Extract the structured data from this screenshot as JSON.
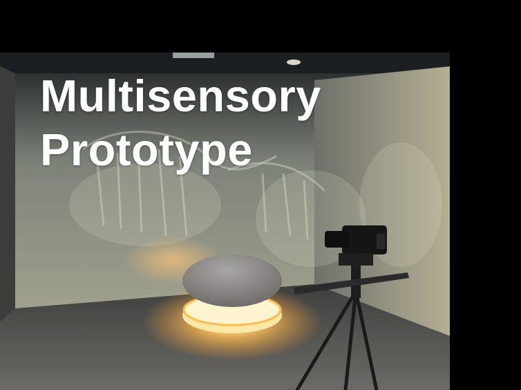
{
  "slide": {
    "title_line1": "Multisensory",
    "title_line2": "Prototype"
  },
  "colors": {
    "background": "#000000",
    "title": "#ffffff",
    "led_glow": "#ffb347"
  },
  "photo": {
    "subject_icons": [
      "projection-room",
      "dinosaur-skeleton-projection",
      "cushion-seat",
      "led-light-ring",
      "camera",
      "camera-slider",
      "tripod"
    ]
  }
}
